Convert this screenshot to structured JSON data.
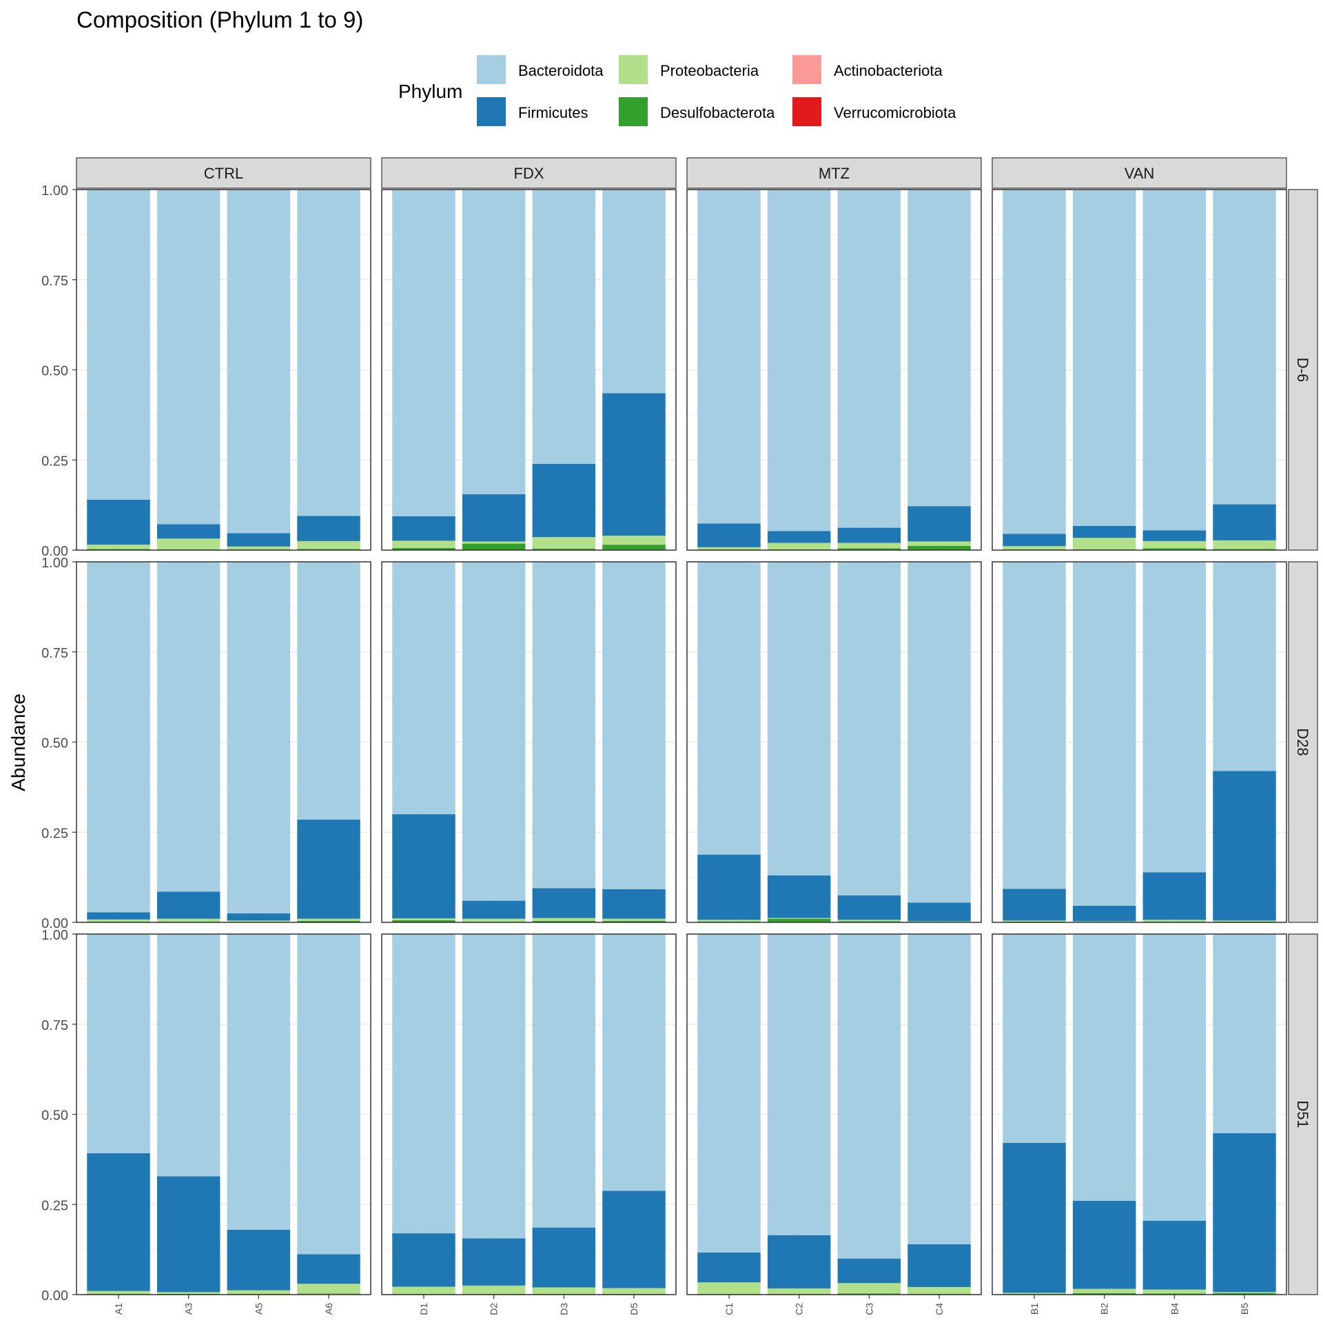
{
  "chart_data": {
    "type": "bar",
    "stacked": true,
    "title": "Composition (Phylum 1 to 9)",
    "ylabel": "Abundance",
    "xlabel": "",
    "ylim": [
      0,
      1
    ],
    "y_ticks": [
      "0.00",
      "0.25",
      "0.50",
      "0.75",
      "1.00"
    ],
    "grid": true,
    "legend": {
      "title": "Phylum",
      "position": "top",
      "entries": [
        {
          "name": "Bacteroidota",
          "color": "#a6cee3"
        },
        {
          "name": "Firmicutes",
          "color": "#1f78b4"
        },
        {
          "name": "Proteobacteria",
          "color": "#b2df8a"
        },
        {
          "name": "Desulfobacterota",
          "color": "#33a02c"
        },
        {
          "name": "Actinobacteriota",
          "color": "#fb9a99"
        },
        {
          "name": "Verrucomicrobiota",
          "color": "#e31a1c"
        }
      ]
    },
    "stack_order": [
      "Verrucomicrobiota",
      "Actinobacteriota",
      "Desulfobacterota",
      "Proteobacteria",
      "Firmicutes",
      "Bacteroidota"
    ],
    "col_facets": [
      "CTRL",
      "FDX",
      "MTZ",
      "VAN"
    ],
    "row_facets": [
      "D-6",
      "D28",
      "D51"
    ],
    "samples": {
      "CTRL": [
        "A1",
        "A3",
        "A5",
        "A6"
      ],
      "FDX": [
        "D1",
        "D2",
        "D3",
        "D5"
      ],
      "MTZ": [
        "C1",
        "C2",
        "C3",
        "C4"
      ],
      "VAN": [
        "B1",
        "B2",
        "B4",
        "B5"
      ]
    },
    "panels": {
      "D-6": {
        "CTRL": [
          {
            "Desulfobacterota": 0.003,
            "Proteobacteria": 0.012,
            "Firmicutes": 0.125,
            "Bacteroidota": 0.86
          },
          {
            "Desulfobacterota": 0.002,
            "Proteobacteria": 0.03,
            "Firmicutes": 0.04,
            "Bacteroidota": 0.928
          },
          {
            "Desulfobacterota": 0.002,
            "Proteobacteria": 0.008,
            "Firmicutes": 0.037,
            "Bacteroidota": 0.953
          },
          {
            "Desulfobacterota": 0.003,
            "Proteobacteria": 0.022,
            "Firmicutes": 0.07,
            "Bacteroidota": 0.905
          }
        ],
        "FDX": [
          {
            "Desulfobacterota": 0.006,
            "Proteobacteria": 0.02,
            "Firmicutes": 0.068,
            "Bacteroidota": 0.906
          },
          {
            "Desulfobacterota": 0.018,
            "Proteobacteria": 0.006,
            "Firmicutes": 0.131,
            "Bacteroidota": 0.845
          },
          {
            "Desulfobacterota": 0.004,
            "Proteobacteria": 0.032,
            "Firmicutes": 0.203,
            "Bacteroidota": 0.761
          },
          {
            "Desulfobacterota": 0.015,
            "Proteobacteria": 0.025,
            "Firmicutes": 0.395,
            "Bacteroidota": 0.565
          }
        ],
        "MTZ": [
          {
            "Desulfobacterota": 0.002,
            "Proteobacteria": 0.006,
            "Firmicutes": 0.066,
            "Bacteroidota": 0.926
          },
          {
            "Desulfobacterota": 0.002,
            "Proteobacteria": 0.018,
            "Firmicutes": 0.033,
            "Bacteroidota": 0.947
          },
          {
            "Desulfobacterota": 0.005,
            "Proteobacteria": 0.015,
            "Firmicutes": 0.042,
            "Bacteroidota": 0.938
          },
          {
            "Desulfobacterota": 0.012,
            "Proteobacteria": 0.012,
            "Firmicutes": 0.098,
            "Bacteroidota": 0.878
          }
        ],
        "VAN": [
          {
            "Desulfobacterota": 0.002,
            "Proteobacteria": 0.009,
            "Firmicutes": 0.034,
            "Bacteroidota": 0.955
          },
          {
            "Desulfobacterota": 0.002,
            "Proteobacteria": 0.032,
            "Firmicutes": 0.033,
            "Bacteroidota": 0.933
          },
          {
            "Desulfobacterota": 0.005,
            "Proteobacteria": 0.02,
            "Firmicutes": 0.03,
            "Bacteroidota": 0.945
          },
          {
            "Desulfobacterota": 0.003,
            "Proteobacteria": 0.024,
            "Firmicutes": 0.1,
            "Bacteroidota": 0.873
          }
        ]
      },
      "D28": {
        "CTRL": [
          {
            "Desulfobacterota": 0.002,
            "Proteobacteria": 0.006,
            "Firmicutes": 0.02,
            "Bacteroidota": 0.972
          },
          {
            "Desulfobacterota": 0.002,
            "Proteobacteria": 0.008,
            "Firmicutes": 0.075,
            "Bacteroidota": 0.915
          },
          {
            "Desulfobacterota": 0.001,
            "Proteobacteria": 0.004,
            "Firmicutes": 0.02,
            "Bacteroidota": 0.975
          },
          {
            "Desulfobacterota": 0.004,
            "Proteobacteria": 0.006,
            "Firmicutes": 0.275,
            "Bacteroidota": 0.715
          }
        ],
        "FDX": [
          {
            "Desulfobacterota": 0.006,
            "Proteobacteria": 0.005,
            "Firmicutes": 0.289,
            "Bacteroidota": 0.7
          },
          {
            "Desulfobacterota": 0.002,
            "Proteobacteria": 0.008,
            "Firmicutes": 0.05,
            "Bacteroidota": 0.94
          },
          {
            "Desulfobacterota": 0.004,
            "Proteobacteria": 0.008,
            "Firmicutes": 0.083,
            "Bacteroidota": 0.905
          },
          {
            "Desulfobacterota": 0.004,
            "Proteobacteria": 0.006,
            "Firmicutes": 0.082,
            "Bacteroidota": 0.908
          }
        ],
        "MTZ": [
          {
            "Desulfobacterota": 0.002,
            "Proteobacteria": 0.005,
            "Firmicutes": 0.181,
            "Bacteroidota": 0.812
          },
          {
            "Desulfobacterota": 0.01,
            "Proteobacteria": 0.002,
            "Firmicutes": 0.118,
            "Bacteroidota": 0.87
          },
          {
            "Desulfobacterota": 0.003,
            "Proteobacteria": 0.004,
            "Firmicutes": 0.068,
            "Bacteroidota": 0.925
          },
          {
            "Desulfobacterota": 0.001,
            "Proteobacteria": 0.002,
            "Firmicutes": 0.052,
            "Bacteroidota": 0.945
          }
        ],
        "VAN": [
          {
            "Desulfobacterota": 0.002,
            "Proteobacteria": 0.003,
            "Firmicutes": 0.088,
            "Bacteroidota": 0.907
          },
          {
            "Desulfobacterota": 0.001,
            "Proteobacteria": 0.002,
            "Firmicutes": 0.043,
            "Bacteroidota": 0.954
          },
          {
            "Desulfobacterota": 0.002,
            "Proteobacteria": 0.005,
            "Firmicutes": 0.132,
            "Bacteroidota": 0.861
          },
          {
            "Desulfobacterota": 0.002,
            "Proteobacteria": 0.003,
            "Firmicutes": 0.415,
            "Bacteroidota": 0.58
          }
        ]
      },
      "D51": {
        "CTRL": [
          {
            "Desulfobacterota": 0.002,
            "Proteobacteria": 0.008,
            "Firmicutes": 0.382,
            "Bacteroidota": 0.608
          },
          {
            "Desulfobacterota": 0.002,
            "Proteobacteria": 0.005,
            "Firmicutes": 0.321,
            "Bacteroidota": 0.672
          },
          {
            "Desulfobacterota": 0.002,
            "Proteobacteria": 0.01,
            "Firmicutes": 0.168,
            "Bacteroidota": 0.82
          },
          {
            "Actinobacteriota": 0.002,
            "Desulfobacterota": 0.001,
            "Proteobacteria": 0.027,
            "Firmicutes": 0.082,
            "Bacteroidota": 0.888
          }
        ],
        "FDX": [
          {
            "Desulfobacterota": 0.002,
            "Proteobacteria": 0.02,
            "Firmicutes": 0.148,
            "Bacteroidota": 0.83
          },
          {
            "Desulfobacterota": 0.002,
            "Proteobacteria": 0.023,
            "Firmicutes": 0.131,
            "Bacteroidota": 0.844
          },
          {
            "Desulfobacterota": 0.002,
            "Proteobacteria": 0.018,
            "Firmicutes": 0.166,
            "Bacteroidota": 0.814
          },
          {
            "Desulfobacterota": 0.002,
            "Proteobacteria": 0.016,
            "Firmicutes": 0.27,
            "Bacteroidota": 0.712
          }
        ],
        "MTZ": [
          {
            "Desulfobacterota": 0.002,
            "Proteobacteria": 0.032,
            "Firmicutes": 0.083,
            "Bacteroidota": 0.883
          },
          {
            "Desulfobacterota": 0.002,
            "Proteobacteria": 0.015,
            "Firmicutes": 0.148,
            "Bacteroidota": 0.835
          },
          {
            "Desulfobacterota": 0.003,
            "Proteobacteria": 0.029,
            "Firmicutes": 0.068,
            "Bacteroidota": 0.9
          },
          {
            "Desulfobacterota": 0.002,
            "Proteobacteria": 0.019,
            "Firmicutes": 0.119,
            "Bacteroidota": 0.86
          }
        ],
        "VAN": [
          {
            "Desulfobacterota": 0.002,
            "Proteobacteria": 0.003,
            "Firmicutes": 0.416,
            "Bacteroidota": 0.579
          },
          {
            "Desulfobacterota": 0.004,
            "Proteobacteria": 0.012,
            "Firmicutes": 0.244,
            "Bacteroidota": 0.74
          },
          {
            "Desulfobacterota": 0.003,
            "Proteobacteria": 0.011,
            "Firmicutes": 0.191,
            "Bacteroidota": 0.795
          },
          {
            "Desulfobacterota": 0.004,
            "Proteobacteria": 0.003,
            "Firmicutes": 0.441,
            "Bacteroidota": 0.552
          }
        ]
      }
    }
  }
}
